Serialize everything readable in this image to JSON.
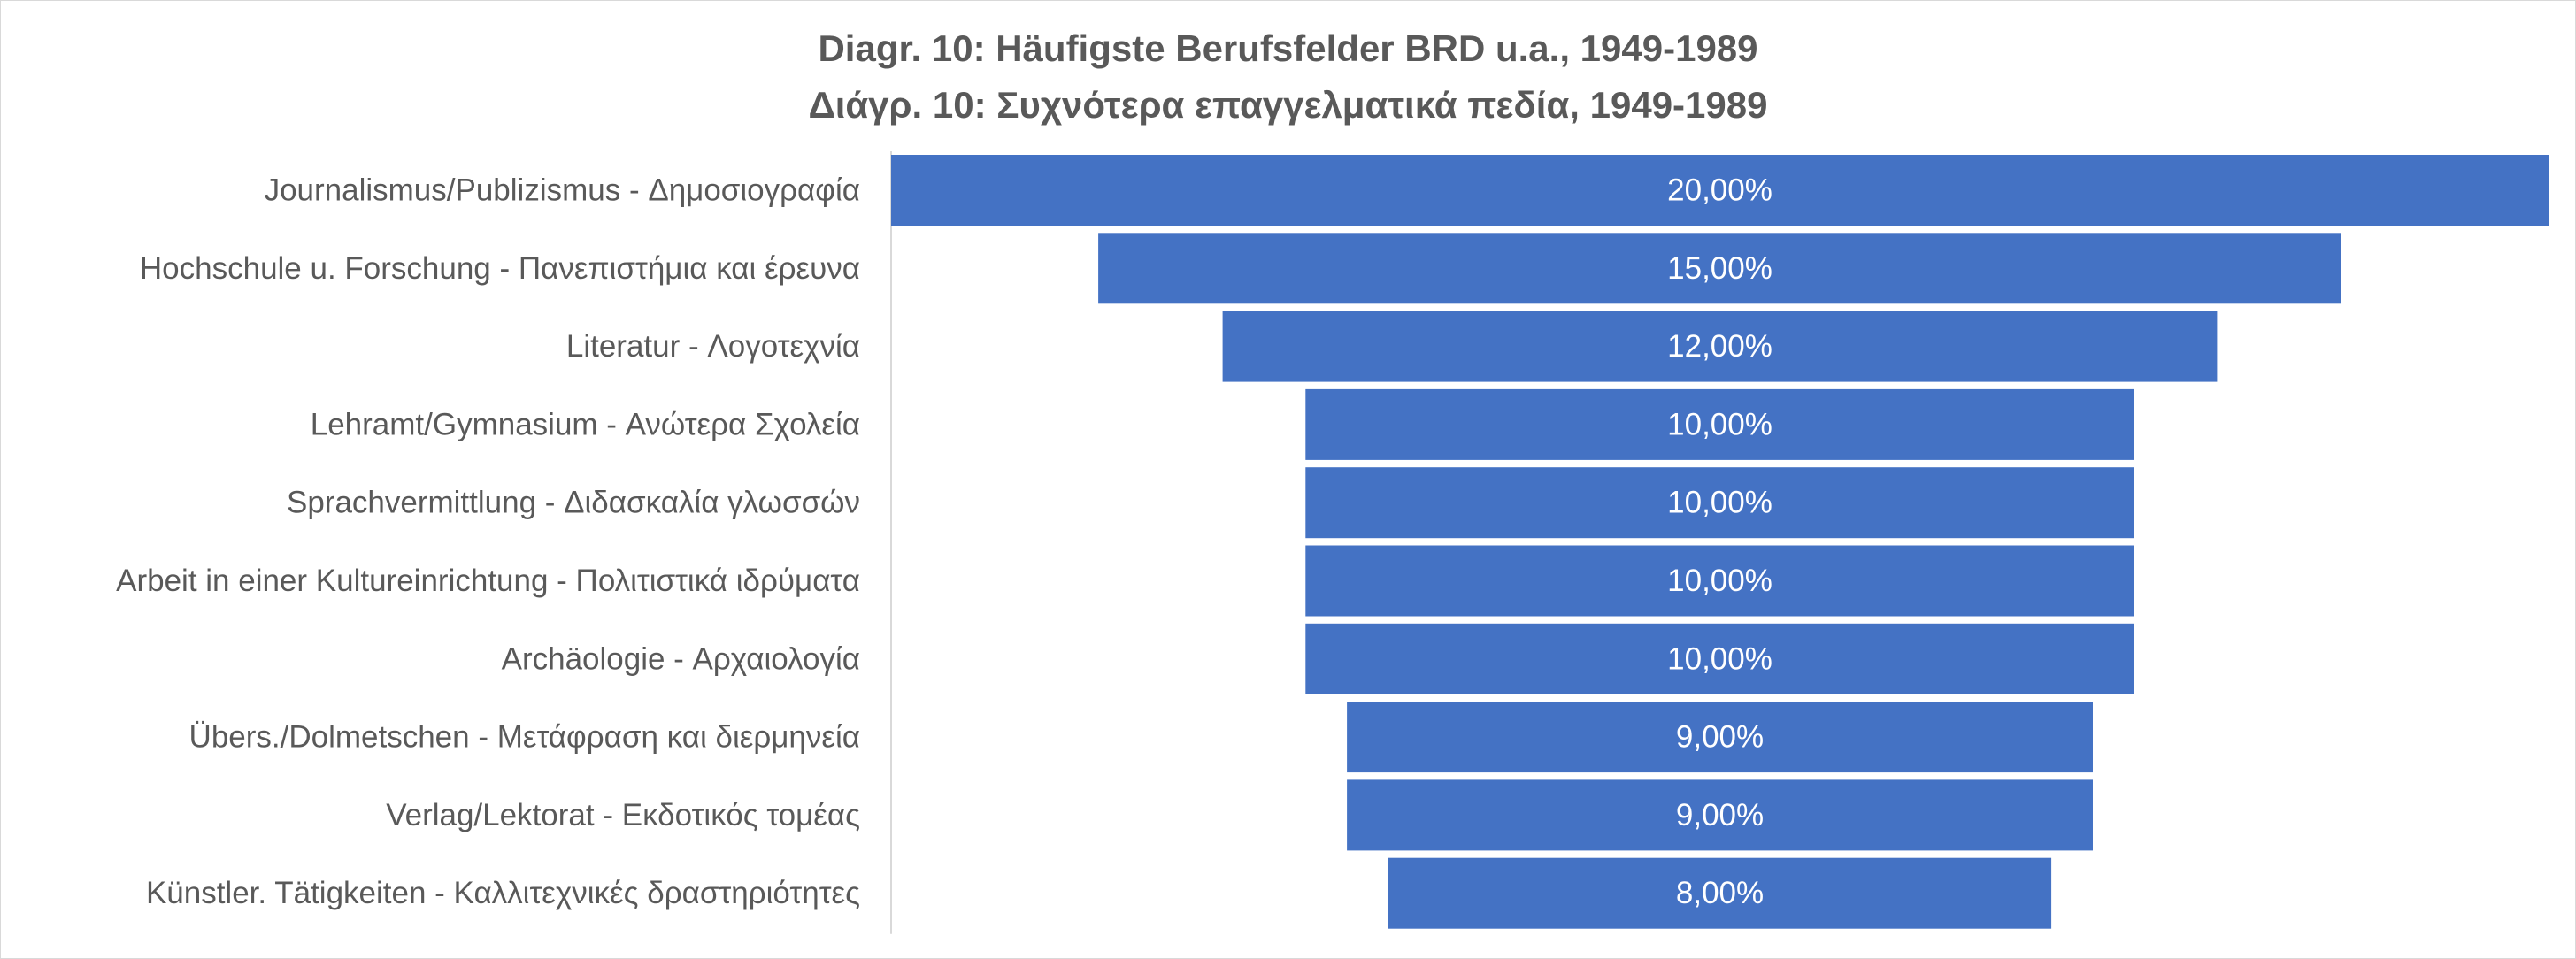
{
  "chart_data": {
    "type": "bar",
    "subtype": "funnel",
    "title": "Diagr. 10: Häufigste Berufsfelder BRD u.a., 1949-1989",
    "subtitle": "Διάγρ. 10: Συχνότερα επαγγελματικά πεδία, 1949-1989",
    "categories": [
      "Journalismus/Publizismus - Δημοσιογραφία",
      "Hochschule u. Forschung - Πανεπιστήμια και έρευνα",
      "Literatur - Λογοτεχνία",
      "Lehramt/Gymnasium - Ανώτερα Σχολεία",
      "Sprachvermittlung - Διδασκαλία γλωσσών",
      "Arbeit in einer Kultureinrichtung - Πολιτιστικά ιδρύματα",
      "Archäologie - Αρχαιολογία",
      "Übers./Dolmetschen - Μετάφραση και διερμηνεία",
      "Verlag/Lektorat - Εκδοτικός τομέας",
      "Künstler. Tätigkeiten - Καλλιτεχνικές δραστηριότητες"
    ],
    "values": [
      20,
      15,
      12,
      10,
      10,
      10,
      10,
      9,
      9,
      8
    ],
    "data_labels": [
      "20,00%",
      "15,00%",
      "12,00%",
      "10,00%",
      "10,00%",
      "10,00%",
      "10,00%",
      "9,00%",
      "9,00%",
      "8,00%"
    ],
    "xlim": [
      0,
      20
    ],
    "grid": false,
    "legend": "none",
    "colors": {
      "bar": "#4472C4",
      "label_text": "#595959",
      "value_text": "#FFFFFF",
      "axis_line": "#D9D9D9",
      "background": "#FFFFFF"
    }
  }
}
